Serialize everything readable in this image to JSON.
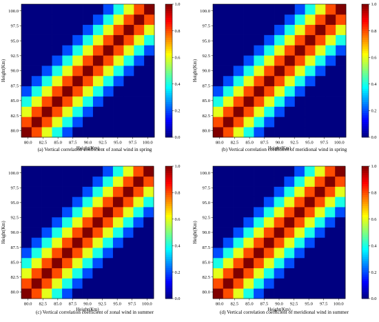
{
  "chart_data": [
    {
      "type": "heatmap",
      "caption": "(a) Vertical correlation coefficient of zonal wind in spring",
      "xlabel": "Height(Km)",
      "ylabel": "Height(Km)",
      "categories": [
        "80.0",
        "82.5",
        "85.0",
        "87.5",
        "90.0",
        "92.5",
        "95.0",
        "97.5",
        "100.0"
      ],
      "x_tick_labels": [
        "80.0",
        "82.5",
        "85.0",
        "87.5",
        "90.0",
        "92.5",
        "95.0",
        "97.5",
        "100.0"
      ],
      "y_tick_labels": [
        "80.0",
        "82.5",
        "85.0",
        "87.5",
        "90.0",
        "92.5",
        "95.0",
        "97.5",
        "100.0"
      ],
      "grid_size": 13,
      "decay": 0.2,
      "zlim": [
        0,
        1
      ],
      "colorbar_ticks": [
        "0.0",
        "0.2",
        "0.4",
        "0.6",
        "0.8",
        "1.0"
      ]
    },
    {
      "type": "heatmap",
      "caption": "(b) Vertical correlation coefficient of meridional wind in spring",
      "xlabel": "Height(Km)",
      "ylabel": "Height(Km)",
      "categories": [
        "80.0",
        "82.5",
        "85.0",
        "87.5",
        "90.0",
        "92.5",
        "95.0",
        "97.5",
        "100.0"
      ],
      "x_tick_labels": [
        "80.0",
        "82.5",
        "85.0",
        "87.5",
        "90.0",
        "92.5",
        "95.0",
        "97.5",
        "100.0"
      ],
      "y_tick_labels": [
        "80.0",
        "82.5",
        "85.0",
        "87.5",
        "90.0",
        "92.5",
        "95.0",
        "97.5",
        "100.0"
      ],
      "grid_size": 13,
      "decay": 0.2,
      "zlim": [
        0,
        1
      ],
      "colorbar_ticks": [
        "0.0",
        "0.2",
        "0.4",
        "0.6",
        "0.8",
        "1.0"
      ]
    },
    {
      "type": "heatmap",
      "caption": "(c) Vertical correlation coefficient of zonal wind in summer",
      "xlabel": "Height(Km)",
      "ylabel": "Height(Km)",
      "categories": [
        "80.0",
        "82.5",
        "85.0",
        "87.5",
        "90.0",
        "92.5",
        "95.0",
        "97.5",
        "100.0"
      ],
      "x_tick_labels": [
        "80.0",
        "82.5",
        "85.0",
        "87.5",
        "90.0",
        "92.5",
        "95.0",
        "97.5",
        "100.0"
      ],
      "y_tick_labels": [
        "80.0",
        "82.5",
        "85.0",
        "87.5",
        "90.0",
        "92.5",
        "95.0",
        "97.5",
        "100.0"
      ],
      "grid_size": 13,
      "decay": 0.2,
      "zlim": [
        0,
        1
      ],
      "colorbar_ticks": [
        "0.0",
        "0.2",
        "0.4",
        "0.6",
        "0.8",
        "1.0"
      ]
    },
    {
      "type": "heatmap",
      "caption": "(d) Vertical correlation coefficient of meridional wind in summer",
      "xlabel": "Height(Km)",
      "ylabel": "Height(Km)",
      "categories": [
        "80.0",
        "82.5",
        "85.0",
        "87.5",
        "90.0",
        "92.5",
        "95.0",
        "97.5",
        "100.0"
      ],
      "x_tick_labels": [
        "80.0",
        "82.5",
        "85.0",
        "87.5",
        "90.0",
        "92.5",
        "95.0",
        "97.5",
        "100.0"
      ],
      "y_tick_labels": [
        "80.0",
        "82.5",
        "85.0",
        "87.5",
        "90.0",
        "92.5",
        "95.0",
        "97.5",
        "100.0"
      ],
      "grid_size": 13,
      "decay": 0.2,
      "zlim": [
        0,
        1
      ],
      "colorbar_ticks": [
        "0.0",
        "0.2",
        "0.4",
        "0.6",
        "0.8",
        "1.0"
      ]
    }
  ]
}
